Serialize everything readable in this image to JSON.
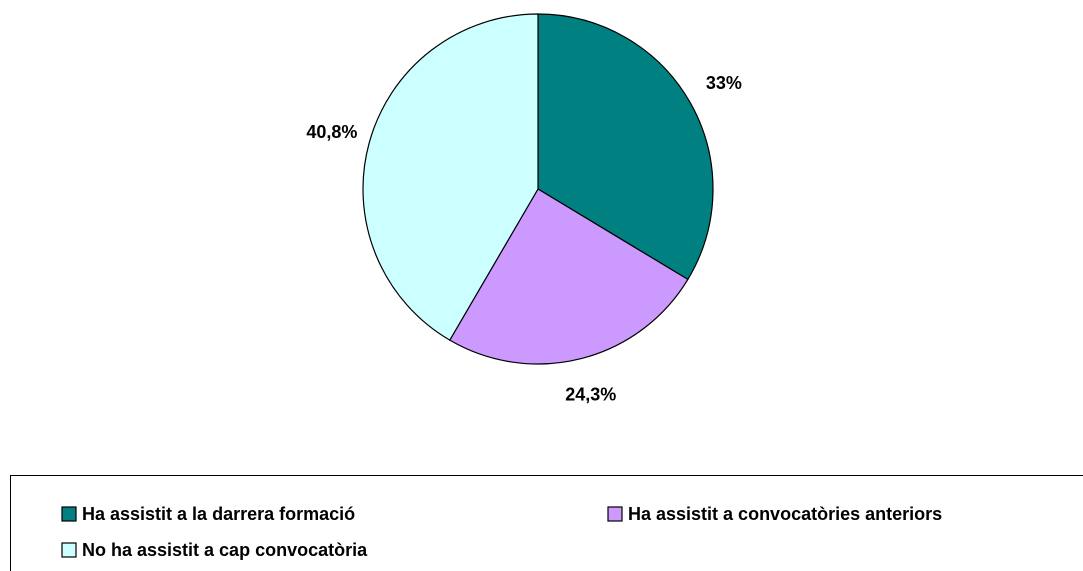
{
  "chart_data": {
    "type": "pie",
    "categories": [
      "Ha assistit a la darrera formació",
      "Ha assistit a convocatòries anteriors",
      "No ha assistit a cap convocatòria"
    ],
    "values": [
      33,
      24.3,
      40.8
    ],
    "value_labels": [
      "33%",
      "24,3%",
      "40,8%"
    ],
    "colors": [
      "#008080",
      "#cc99ff",
      "#ccffff"
    ],
    "legend": "bottom"
  }
}
